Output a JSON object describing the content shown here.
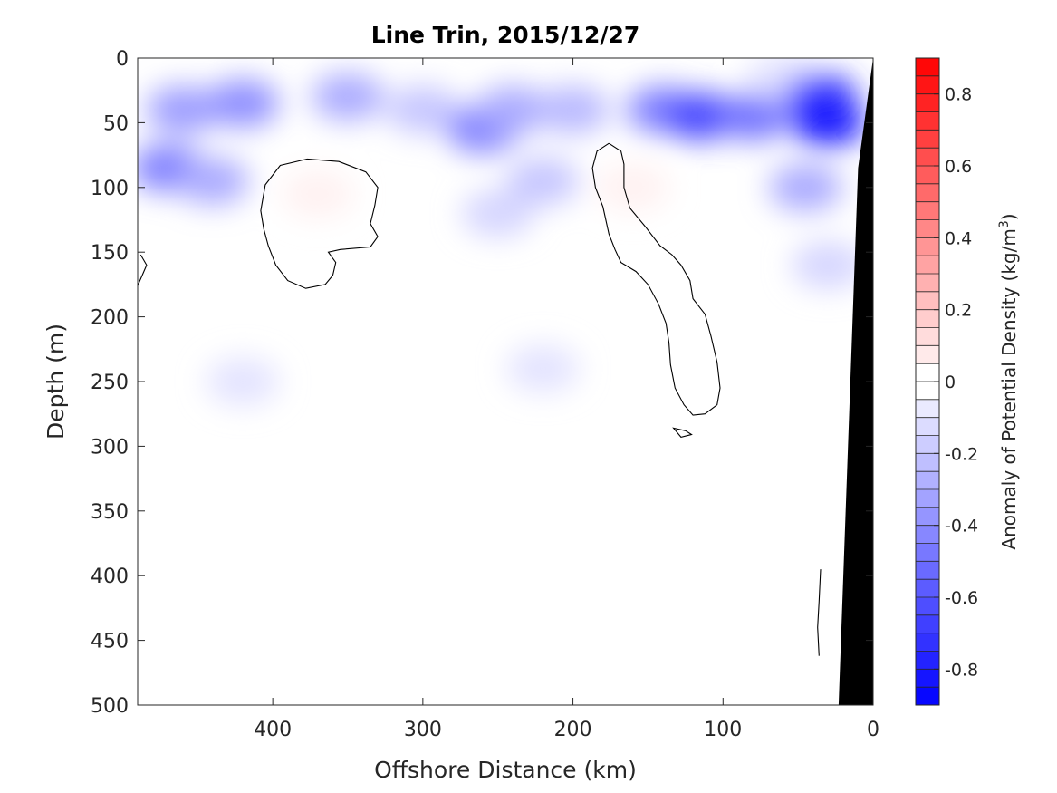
{
  "chart_data": {
    "type": "heatmap",
    "subtype": "filled-contour section",
    "title": "Line Trin, 2015/12/27",
    "xlabel": "Offshore Distance (km)",
    "ylabel": "Depth (m)",
    "x_reversed": true,
    "y_reversed": true,
    "xlim": [
      490,
      0
    ],
    "ylim": [
      0,
      500
    ],
    "xticks": [
      400,
      300,
      200,
      100,
      0
    ],
    "yticks": [
      0,
      50,
      100,
      150,
      200,
      250,
      300,
      350,
      400,
      450,
      500
    ],
    "colorbar": {
      "label": "Anomaly of Potential Density (kg/m",
      "label_superscript": "3",
      "label_suffix": ")",
      "range": [
        -0.9,
        0.9
      ],
      "step": 0.05,
      "ticks": [
        0.8,
        0.6,
        0.4,
        0.2,
        0,
        -0.2,
        -0.4,
        -0.6,
        -0.8
      ],
      "tick_labels": [
        "0.8",
        "0.6",
        "0.4",
        "0.2",
        "0",
        "-0.2",
        "-0.4",
        "-0.6",
        "-0.8"
      ],
      "colormap": "blue-white-red",
      "neg_color": "#0000ff",
      "zero_color": "#ffffff",
      "pos_color": "#ff0000"
    },
    "bathymetry_color": "#000000",
    "zero_contour_color": "#000000",
    "anomaly_field": [
      {
        "x": 460,
        "y": 40,
        "value": -0.35
      },
      {
        "x": 420,
        "y": 35,
        "value": -0.4
      },
      {
        "x": 470,
        "y": 85,
        "value": -0.45
      },
      {
        "x": 440,
        "y": 95,
        "value": -0.3
      },
      {
        "x": 350,
        "y": 30,
        "value": -0.3
      },
      {
        "x": 300,
        "y": 40,
        "value": -0.2
      },
      {
        "x": 260,
        "y": 55,
        "value": -0.45
      },
      {
        "x": 240,
        "y": 40,
        "value": -0.3
      },
      {
        "x": 220,
        "y": 95,
        "value": -0.2
      },
      {
        "x": 250,
        "y": 120,
        "value": -0.15
      },
      {
        "x": 200,
        "y": 40,
        "value": -0.25
      },
      {
        "x": 140,
        "y": 40,
        "value": -0.45
      },
      {
        "x": 115,
        "y": 45,
        "value": -0.65
      },
      {
        "x": 80,
        "y": 45,
        "value": -0.5
      },
      {
        "x": 60,
        "y": 15,
        "value": -0.1
      },
      {
        "x": 35,
        "y": 30,
        "value": -0.7
      },
      {
        "x": 30,
        "y": 50,
        "value": -0.8
      },
      {
        "x": 45,
        "y": 100,
        "value": -0.3
      },
      {
        "x": 30,
        "y": 160,
        "value": -0.15
      },
      {
        "x": 420,
        "y": 250,
        "value": -0.1
      },
      {
        "x": 220,
        "y": 240,
        "value": -0.1
      },
      {
        "x": 370,
        "y": 105,
        "value": 0.05
      },
      {
        "x": 160,
        "y": 100,
        "value": 0.05
      }
    ],
    "zero_contours": [
      {
        "points": [
          [
            377,
            78
          ],
          [
            395,
            83
          ],
          [
            405,
            98
          ],
          [
            408,
            118
          ],
          [
            406,
            132
          ],
          [
            403,
            145
          ],
          [
            398,
            160
          ],
          [
            390,
            172
          ],
          [
            378,
            178
          ],
          [
            365,
            175
          ],
          [
            360,
            168
          ],
          [
            358,
            158
          ],
          [
            363,
            150
          ],
          [
            355,
            148
          ],
          [
            335,
            146
          ],
          [
            330,
            138
          ],
          [
            335,
            128
          ],
          [
            332,
            114
          ],
          [
            330,
            100
          ],
          [
            338,
            88
          ],
          [
            356,
            80
          ],
          [
            377,
            78
          ]
        ]
      },
      {
        "points": [
          [
            176,
            66
          ],
          [
            168,
            72
          ],
          [
            166,
            82
          ],
          [
            166,
            100
          ],
          [
            162,
            116
          ],
          [
            152,
            130
          ],
          [
            142,
            145
          ],
          [
            134,
            152
          ],
          [
            128,
            160
          ],
          [
            122,
            172
          ],
          [
            120,
            186
          ],
          [
            112,
            198
          ],
          [
            108,
            215
          ],
          [
            104,
            235
          ],
          [
            102,
            255
          ],
          [
            104,
            268
          ],
          [
            112,
            275
          ],
          [
            120,
            276
          ],
          [
            126,
            268
          ],
          [
            132,
            255
          ],
          [
            135,
            237
          ],
          [
            136,
            220
          ],
          [
            138,
            205
          ],
          [
            143,
            190
          ],
          [
            150,
            175
          ],
          [
            158,
            165
          ],
          [
            168,
            158
          ],
          [
            172,
            148
          ],
          [
            176,
            136
          ],
          [
            180,
            115
          ],
          [
            185,
            100
          ],
          [
            187,
            85
          ],
          [
            184,
            72
          ],
          [
            176,
            66
          ]
        ]
      },
      {
        "points": [
          [
            125,
            288
          ],
          [
            133,
            286
          ],
          [
            128,
            293
          ],
          [
            121,
            291
          ],
          [
            125,
            288
          ]
        ]
      },
      {
        "points": [
          [
            488,
            152
          ],
          [
            484,
            160
          ],
          [
            487,
            168
          ],
          [
            490,
            176
          ]
        ]
      },
      {
        "points": [
          [
            35,
            395
          ],
          [
            36,
            420
          ],
          [
            37,
            440
          ],
          [
            36,
            462
          ]
        ]
      }
    ],
    "bathymetry": [
      [
        23,
        500
      ],
      [
        10,
        85
      ],
      [
        0,
        0
      ]
    ]
  }
}
